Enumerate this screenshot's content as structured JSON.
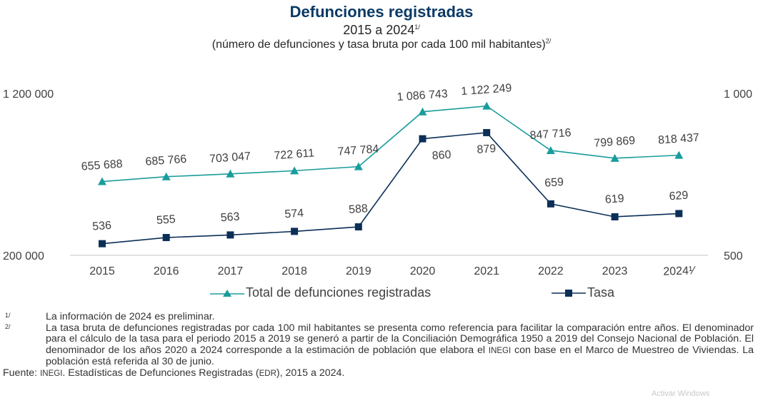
{
  "title": "Defunciones registradas",
  "subtitle": "2015 a 2024",
  "subtitle_sup": "1/",
  "subtitle2": "(número de defunciones y tasa bruta por cada 100 mil habitantes)",
  "subtitle2_sup": "2/",
  "chart_data": {
    "type": "line",
    "title": "Defunciones registradas",
    "categories": [
      "2015",
      "2016",
      "2017",
      "2018",
      "2019",
      "2020",
      "2021",
      "2022",
      "2023",
      "2024"
    ],
    "category_labels": [
      "2015",
      "2016",
      "2017",
      "2018",
      "2019",
      "2020",
      "2021",
      "2022",
      "2023",
      "2024¹⁄"
    ],
    "y_left": {
      "ylim": [
        200000,
        1200000
      ],
      "ticks": [
        200000,
        1200000
      ],
      "tick_labels": [
        "200 000",
        "1 200 000"
      ]
    },
    "y_right": {
      "ylim": [
        500,
        1000
      ],
      "ticks": [
        500,
        1000
      ],
      "tick_labels": [
        "500",
        "1 000"
      ]
    },
    "series": [
      {
        "name": "Total de defunciones registradas",
        "axis": "left",
        "marker": "triangle",
        "color": "#1a9c9c",
        "values": [
          655688,
          685766,
          703047,
          722611,
          747784,
          1086743,
          1122249,
          847716,
          799869,
          818437
        ],
        "labels": [
          "655 688",
          "685 766",
          "703 047",
          "722 611",
          "747 784",
          "1 086 743",
          "1 122 249",
          "847 716",
          "799 869",
          "818 437"
        ]
      },
      {
        "name": "Tasa",
        "axis": "right",
        "marker": "square",
        "color": "#0b2f57",
        "values": [
          536,
          555,
          563,
          574,
          588,
          860,
          879,
          659,
          619,
          629
        ],
        "labels": [
          "536",
          "555",
          "563",
          "574",
          "588",
          "860",
          "879",
          "659",
          "619",
          "629"
        ]
      }
    ],
    "grid": false,
    "legend_position": "bottom"
  },
  "notes": [
    {
      "mark": "1/",
      "text": "La información de 2024 es preliminar."
    },
    {
      "mark": "2/",
      "text_a": "La tasa bruta de defunciones registradas por cada 100 mil habitantes se presenta como referencia para facilitar la comparación entre años. El denominador para el cálculo de la tasa para el periodo 2015 a 2019 se generó a partir de la Conciliación Demográfica 1950 a 2019 del Consejo Nacional de Población. El denominador de los años 2020 a 2024 corresponde a la estimación de población que elabora el ",
      "inegi": "INEGI",
      "text_b": " con base en el Marco de Muestreo de Viviendas. La población está referida al 30 de junio."
    }
  ],
  "source": {
    "label": "Fuente:",
    "inegi": "INEGI",
    "text_a": ". Estadísticas de Defunciones Registradas (",
    "edr": "EDR",
    "text_b": "), 2015 a 2024."
  },
  "watermark": "Activar Windows"
}
